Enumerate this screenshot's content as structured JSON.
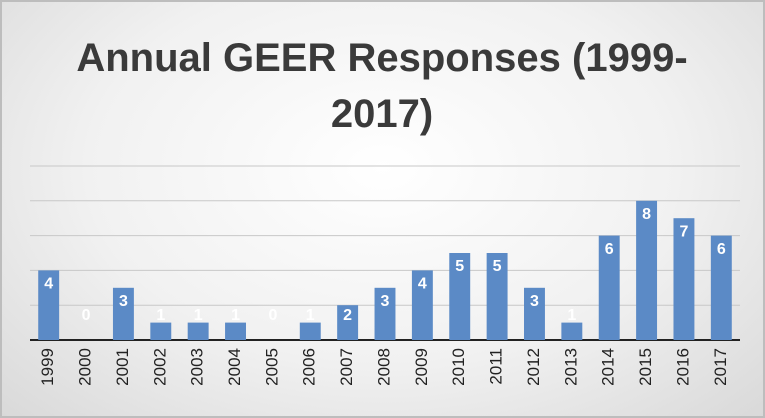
{
  "chart_data": {
    "type": "bar",
    "title": "Annual GEER Responses (1999-2017)",
    "categories": [
      "1999",
      "2000",
      "2001",
      "2002",
      "2003",
      "2004",
      "2005",
      "2006",
      "2007",
      "2008",
      "2009",
      "2010",
      "2011",
      "2012",
      "2013",
      "2014",
      "2015",
      "2016",
      "2017"
    ],
    "values": [
      4,
      0,
      3,
      1,
      1,
      1,
      0,
      1,
      2,
      3,
      4,
      5,
      5,
      3,
      1,
      6,
      8,
      7,
      6
    ],
    "color": "#5b8ac6",
    "ylim": [
      0,
      10
    ],
    "yticks": [
      0,
      2,
      4,
      6,
      8,
      10
    ],
    "grid": true
  }
}
